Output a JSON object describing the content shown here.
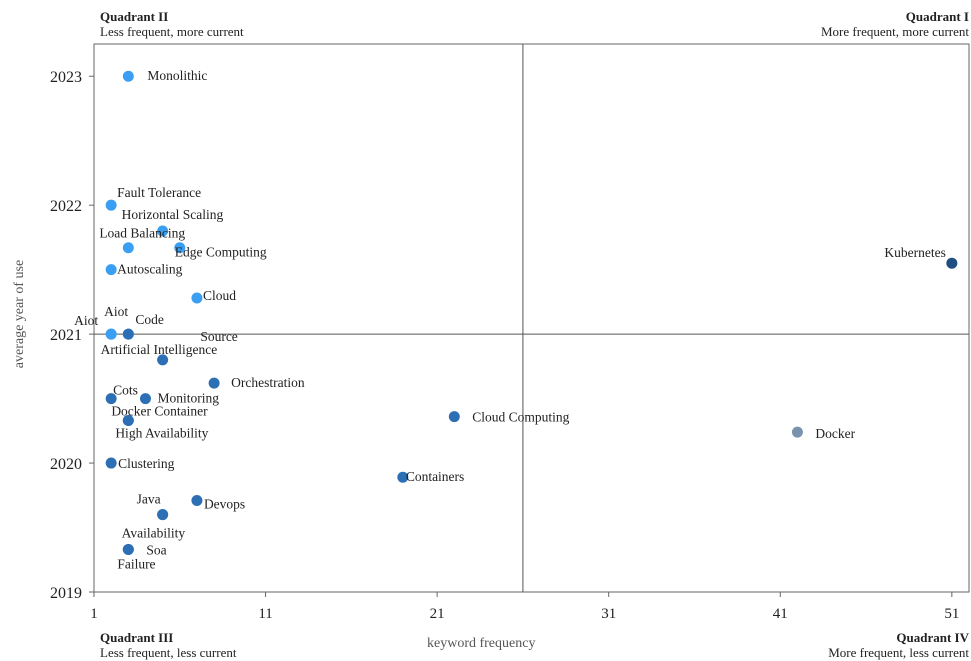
{
  "quadrants": {
    "q1": {
      "title": "Quadrant I",
      "subtitle": "More frequent, more current"
    },
    "q2": {
      "title": "Quadrant II",
      "subtitle": "Less frequent, more current"
    },
    "q3": {
      "title": "Quadrant III",
      "subtitle": "Less frequent, less current"
    },
    "q4": {
      "title": "Quadrant IV",
      "subtitle": "More frequent, less current"
    }
  },
  "colors": {
    "light_blue": "#3a9ff2",
    "mid_blue": "#2d6fb5",
    "dark_blue": "#1f4f80",
    "gray_blue": "#7a93ad",
    "axis": "#666666",
    "divider": "#555555"
  },
  "chart_data": {
    "type": "scatter",
    "title": "",
    "xlabel": "keyword frequency",
    "ylabel": "average year of use",
    "xlim": [
      1,
      52
    ],
    "ylim": [
      2019,
      2023.25
    ],
    "xticks": [
      1,
      11,
      21,
      31,
      41,
      51
    ],
    "yticks": [
      2019,
      2020,
      2021,
      2022,
      2023
    ],
    "dividers": {
      "x": 26,
      "y": 2021
    },
    "grid": false,
    "points": [
      {
        "label": "Monolithic",
        "x": 3,
        "y": 2023.0,
        "color": "light_blue"
      },
      {
        "label": "Fault Tolerance",
        "x": 2,
        "y": 2022.0,
        "color": "light_blue"
      },
      {
        "label": "Horizontal Scaling",
        "x": 5,
        "y": 2021.8,
        "color": "light_blue"
      },
      {
        "label": "Load Balancing",
        "x": 3,
        "y": 2021.67,
        "color": "light_blue"
      },
      {
        "label": "Edge Computing",
        "x": 6,
        "y": 2021.67,
        "color": "light_blue"
      },
      {
        "label": "Autoscaling",
        "x": 2,
        "y": 2021.5,
        "color": "light_blue"
      },
      {
        "label": "Cloud",
        "x": 7,
        "y": 2021.28,
        "color": "light_blue"
      },
      {
        "label": "Aiot",
        "x": 2,
        "y": 2021.0,
        "color": "light_blue"
      },
      {
        "label": "Aiot",
        "x": 2,
        "y": 2021.0,
        "color": "light_blue"
      },
      {
        "label": "Code",
        "x": 3,
        "y": 2021.0,
        "color": "light_blue"
      },
      {
        "label": "Source",
        "x": 3,
        "y": 2021.0,
        "color": "mid_blue"
      },
      {
        "label": "Artificial Intelligence",
        "x": 5,
        "y": 2020.8,
        "color": "mid_blue"
      },
      {
        "label": "Orchestration",
        "x": 8,
        "y": 2020.62,
        "color": "mid_blue"
      },
      {
        "label": "Cots",
        "x": 2,
        "y": 2020.5,
        "color": "mid_blue"
      },
      {
        "label": "Monitoring",
        "x": 4,
        "y": 2020.5,
        "color": "mid_blue"
      },
      {
        "label": "Docker Container",
        "x": 3,
        "y": 2020.33,
        "color": "mid_blue"
      },
      {
        "label": "High Availability",
        "x": 3,
        "y": 2020.33,
        "color": "mid_blue"
      },
      {
        "label": "Cloud Computing",
        "x": 22,
        "y": 2020.36,
        "color": "mid_blue"
      },
      {
        "label": "Clustering",
        "x": 2,
        "y": 2020.0,
        "color": "mid_blue"
      },
      {
        "label": "Containers",
        "x": 19,
        "y": 2019.89,
        "color": "mid_blue"
      },
      {
        "label": "Java",
        "x": 5,
        "y": 2019.6,
        "color": "mid_blue"
      },
      {
        "label": "Devops",
        "x": 7,
        "y": 2019.71,
        "color": "mid_blue"
      },
      {
        "label": "Availability",
        "x": 5,
        "y": 2019.6,
        "color": "mid_blue"
      },
      {
        "label": "Soa",
        "x": 3,
        "y": 2019.33,
        "color": "mid_blue"
      },
      {
        "label": "Failure",
        "x": 3,
        "y": 2019.33,
        "color": "mid_blue"
      },
      {
        "label": "Kubernetes",
        "x": 51,
        "y": 2021.55,
        "color": "dark_blue"
      },
      {
        "label": "Docker",
        "x": 42,
        "y": 2020.24,
        "color": "gray_blue"
      }
    ]
  }
}
